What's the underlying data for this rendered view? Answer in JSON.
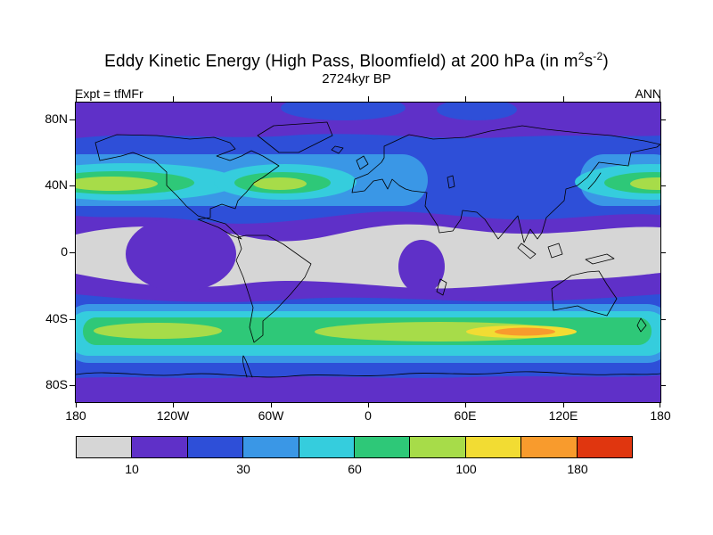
{
  "header": {
    "title_prefix": "Eddy Kinetic Energy (High Pass, Bloomfield) at 200 hPa (in m",
    "title_sup1": "2",
    "title_mid": "s",
    "title_sup2": "-2",
    "title_suffix": ")",
    "subtitle": "2724kyr BP",
    "experiment": "Expt = tfMFr",
    "season": "ANN"
  },
  "axes": {
    "lat_labels": [
      "80N",
      "40N",
      "0",
      "40S",
      "80S"
    ],
    "lon_labels": [
      "180",
      "120W",
      "60W",
      "0",
      "60E",
      "120E",
      "180"
    ]
  },
  "colorbar": {
    "colors": [
      "#d6d6d6",
      "#5f30c8",
      "#2e4fd8",
      "#3a97e6",
      "#35cddd",
      "#2ec878",
      "#a7dc49",
      "#f2dc33",
      "#f89b2d",
      "#e0360f"
    ],
    "labels": [
      "10",
      "30",
      "60",
      "100",
      "180"
    ]
  },
  "chart_data": {
    "type": "heatmap",
    "variant": "filled-contour world map (equirectangular)",
    "title": "Eddy Kinetic Energy (High Pass, Bloomfield) at 200 hPa (in m2 s-2)",
    "time_label": "2724kyr BP",
    "experiment": "tfMFr",
    "season": "ANN",
    "units": "m2 s-2",
    "x_ticks": [
      "180",
      "120W",
      "60W",
      "0",
      "60E",
      "120E",
      "180"
    ],
    "y_ticks": [
      "80N",
      "40N",
      "0",
      "40S",
      "80S"
    ],
    "colorbar_tick_labels": [
      10,
      30,
      60,
      100,
      180
    ],
    "n_color_bands": 10,
    "band_colors": [
      "#d6d6d6",
      "#5f30c8",
      "#2e4fd8",
      "#3a97e6",
      "#35cddd",
      "#2ec878",
      "#a7dc49",
      "#f2dc33",
      "#f89b2d",
      "#e0360f"
    ],
    "features": [
      "Values below ~10 (gray) across the deep tropics, roughly 15N-15S, broadest over the eastern hemisphere",
      "Northern-hemisphere storm track near 40N with maxima ~100 (yellow-green) over the NE Pacific near 150W, the western North Atlantic near 55W, and the far-western Pacific near the dateline",
      "Relative minimum (blue, ~20-30) along 40N over central Asia",
      "Southern-hemisphere circumpolar storm track ~40-60S with broad green band (60-100) at nearly all longitudes",
      "SH maximum reaching the orange band (~140-180) near 50S between about 60E and 110E",
      "Polar caps mostly 10-30 (purple/blue bands)"
    ]
  }
}
